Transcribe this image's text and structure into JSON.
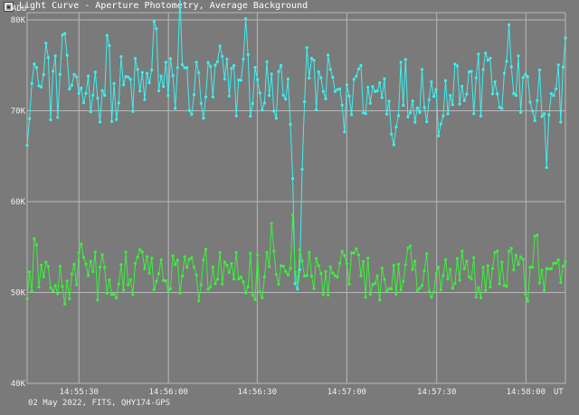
{
  "window": {
    "title": "Light Curve - Aperture Photometry, Average Background"
  },
  "footer": "02 May 2022, FITS, QHY174-GPS",
  "chart_data": {
    "type": "scatter",
    "ylabel": "ADU",
    "xlabel": "UT",
    "ylim": [
      40000,
      80000
    ],
    "yticks": [
      {
        "v": 40000,
        "label": "40K"
      },
      {
        "v": 50000,
        "label": "50K"
      },
      {
        "v": 60000,
        "label": "60K"
      },
      {
        "v": 70000,
        "label": "70K"
      },
      {
        "v": 80000,
        "label": "80K"
      }
    ],
    "xticks": [
      {
        "t": 0.0963,
        "label": "14:55:30"
      },
      {
        "t": 0.2625,
        "label": "14:56:00"
      },
      {
        "t": 0.4275,
        "label": "14:56:30"
      },
      {
        "t": 0.5938,
        "label": "14:57:00"
      },
      {
        "t": 0.7609,
        "label": "14:57:30"
      },
      {
        "t": 0.9266,
        "label": "14:58:00"
      }
    ],
    "grid": true,
    "colors": {
      "background": "#7a7a7a",
      "grid": "#b8b8b8",
      "text": "#f0f0f0",
      "upper_series": "#3ef0f0",
      "lower_series": "#3cf03c"
    },
    "series": [
      {
        "key": "upper",
        "color": "#3ef0f0",
        "keypoints": [
          [
            0.0,
            66200
          ],
          [
            0.012,
            75800
          ],
          [
            0.02,
            73500
          ],
          [
            0.035,
            77500
          ],
          [
            0.068,
            82500
          ],
          [
            0.084,
            71500
          ],
          [
            0.125,
            73500
          ],
          [
            0.15,
            80300
          ],
          [
            0.165,
            68500
          ],
          [
            0.238,
            84200
          ],
          [
            0.276,
            70000
          ],
          [
            0.284,
            83100
          ],
          [
            0.326,
            68300
          ],
          [
            0.357,
            77900
          ],
          [
            0.405,
            82000
          ],
          [
            0.428,
            73400
          ],
          [
            0.46,
            68500
          ],
          [
            0.478,
            71500
          ],
          [
            0.487,
            72700
          ],
          [
            0.49,
            67300
          ],
          [
            0.495,
            59700
          ],
          [
            0.498,
            51200
          ],
          [
            0.506,
            51000
          ],
          [
            0.508,
            58600
          ],
          [
            0.514,
            67500
          ],
          [
            0.52,
            77900
          ],
          [
            0.545,
            73800
          ],
          [
            0.59,
            67300
          ],
          [
            0.617,
            75600
          ],
          [
            0.637,
            70700
          ],
          [
            0.68,
            64500
          ],
          [
            0.713,
            69600
          ],
          [
            0.765,
            66200
          ],
          [
            0.795,
            75400
          ],
          [
            0.85,
            77700
          ],
          [
            0.896,
            80100
          ],
          [
            0.925,
            74000
          ],
          [
            0.942,
            67700
          ],
          [
            0.958,
            68300
          ],
          [
            0.966,
            61300
          ],
          [
            0.978,
            71500
          ],
          [
            1.0,
            78000
          ]
        ]
      },
      {
        "key": "lower",
        "color": "#3cf03c",
        "keypoints": [
          [
            0.0,
            49300
          ],
          [
            0.014,
            57000
          ],
          [
            0.04,
            52900
          ],
          [
            0.07,
            48600
          ],
          [
            0.1,
            55600
          ],
          [
            0.15,
            48900
          ],
          [
            0.21,
            55100
          ],
          [
            0.26,
            49800
          ],
          [
            0.33,
            55400
          ],
          [
            0.4,
            50200
          ],
          [
            0.455,
            58200
          ],
          [
            0.48,
            52100
          ],
          [
            0.493,
            59200
          ],
          [
            0.51,
            53800
          ],
          [
            0.55,
            49700
          ],
          [
            0.61,
            55800
          ],
          [
            0.67,
            49200
          ],
          [
            0.71,
            57000
          ],
          [
            0.75,
            48900
          ],
          [
            0.8,
            54300
          ],
          [
            0.84,
            49300
          ],
          [
            0.9,
            55000
          ],
          [
            0.946,
            58900
          ],
          [
            0.96,
            49800
          ],
          [
            1.0,
            53400
          ]
        ]
      }
    ]
  }
}
